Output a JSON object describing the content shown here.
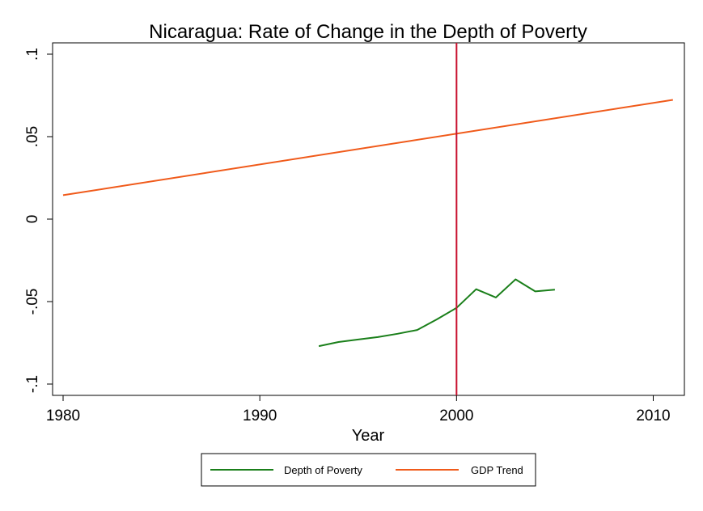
{
  "chart_data": {
    "type": "line",
    "title": "Nicaragua: Rate of Change in the Depth of Poverty",
    "xlabel": "Year",
    "ylabel": "",
    "xlim": [
      1980,
      2011
    ],
    "ylim": [
      -0.1,
      0.1
    ],
    "x_ticks": [
      {
        "value": 1980,
        "label": "1980"
      },
      {
        "value": 1990,
        "label": "1990"
      },
      {
        "value": 2000,
        "label": "2000"
      },
      {
        "value": 2010,
        "label": "2010"
      }
    ],
    "y_ticks": [
      {
        "value": 0.1,
        "label": ".1"
      },
      {
        "value": 0.05,
        "label": ".05"
      },
      {
        "value": 0,
        "label": "0"
      },
      {
        "value": -0.05,
        "label": "-.05"
      },
      {
        "value": -0.1,
        "label": "-.1"
      }
    ],
    "grid": false,
    "legend_position": "bottom",
    "reference_line": {
      "x": 2000,
      "color": "#c8102e"
    },
    "series": [
      {
        "name": "Depth of Poverty",
        "color": "#1a7f1a",
        "x": [
          1993,
          1994,
          1995,
          1996,
          1997,
          1998,
          1999,
          2000,
          2001,
          2002,
          2003,
          2004,
          2005
        ],
        "y": [
          -0.077,
          -0.0745,
          -0.073,
          -0.0715,
          -0.0695,
          -0.0672,
          -0.0608,
          -0.0538,
          -0.0425,
          -0.0475,
          -0.0365,
          -0.0438,
          -0.0428
        ]
      },
      {
        "name": "GDP Trend",
        "color": "#f05a1a",
        "x": [
          1980,
          2011
        ],
        "y": [
          0.0145,
          0.0723
        ]
      }
    ]
  }
}
